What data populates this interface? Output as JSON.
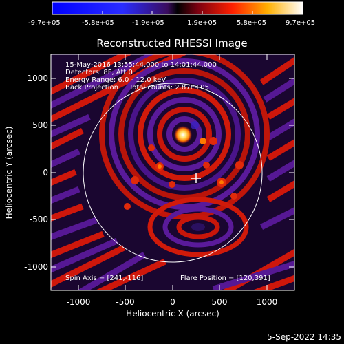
{
  "colorbar": {
    "tick_labels": [
      "-9.7e+05",
      "-5.8e+05",
      "-1.9e+05",
      "1.9e+05",
      "5.8e+05",
      "9.7e+05"
    ]
  },
  "plot": {
    "title": "Reconstructed RHESSI Image",
    "xlabel": "Heliocentric X (arcsec)",
    "ylabel": "Heliocentric Y (arcsec)",
    "xticks": [
      "-1000",
      "-500",
      "0",
      "500",
      "1000"
    ],
    "yticks": [
      "1000",
      "500",
      "0",
      "-500",
      "-1000"
    ],
    "info_lines": [
      "15-May-2016 13:55:44.000 to 14:01:44.000",
      "Detectors: 8F, Att 0",
      "Energy Range: 6.0 - 12.0 keV",
      "Back Projection     Total counts: 2.87E+05"
    ],
    "spin_axis": "Spin Axis = [241,-116]",
    "flare_position": "Flare Position = [120,391]"
  },
  "footer": {
    "timestamp": "5-Sep-2022 14:35"
  },
  "colors": {
    "background": "#000000",
    "text": "#ffffff",
    "limb_circle": "#ffffff"
  }
}
